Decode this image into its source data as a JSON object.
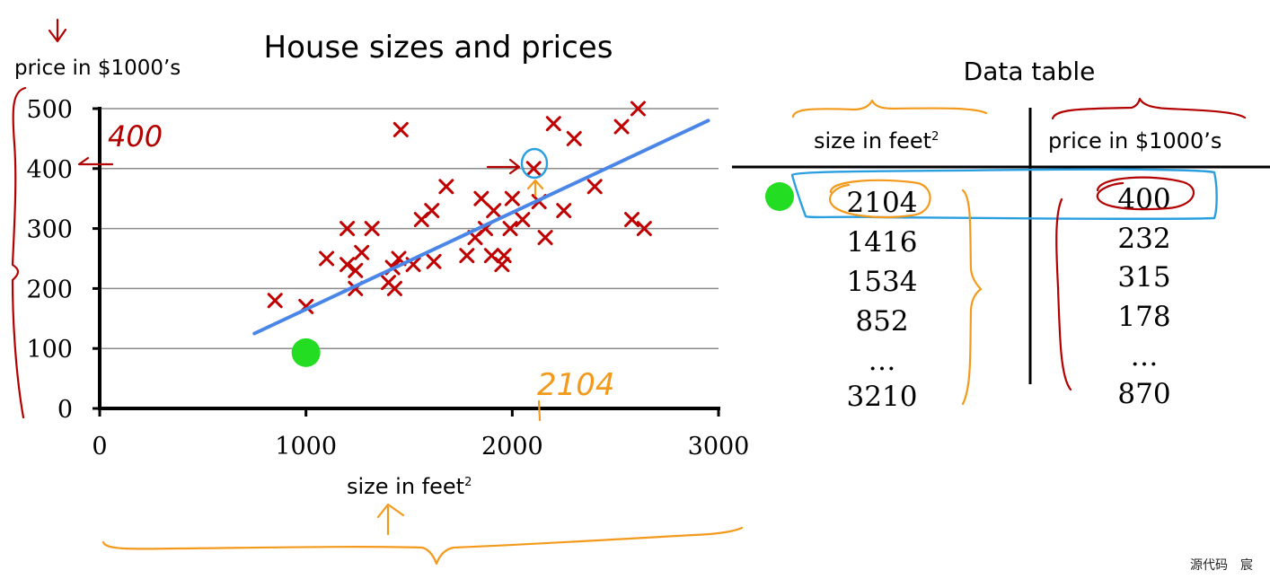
{
  "chart_data": {
    "type": "scatter",
    "title": "House sizes and prices",
    "ylabel": "price in $1000’s",
    "xlabel": "size in feet",
    "xlabel_superscript": "2",
    "xlim": [
      0,
      3000
    ],
    "ylim": [
      0,
      500
    ],
    "x_ticks": [
      0,
      1000,
      2000,
      3000
    ],
    "y_ticks": [
      0,
      100,
      200,
      300,
      400,
      500
    ],
    "grid": true,
    "marker": "x",
    "marker_color": "#c00000",
    "points": [
      {
        "x": 850,
        "y": 180
      },
      {
        "x": 1000,
        "y": 170
      },
      {
        "x": 1100,
        "y": 250
      },
      {
        "x": 1200,
        "y": 300
      },
      {
        "x": 1200,
        "y": 240
      },
      {
        "x": 1240,
        "y": 230
      },
      {
        "x": 1240,
        "y": 200
      },
      {
        "x": 1270,
        "y": 260
      },
      {
        "x": 1320,
        "y": 300
      },
      {
        "x": 1400,
        "y": 210
      },
      {
        "x": 1420,
        "y": 235
      },
      {
        "x": 1430,
        "y": 200
      },
      {
        "x": 1450,
        "y": 250
      },
      {
        "x": 1460,
        "y": 465
      },
      {
        "x": 1520,
        "y": 240
      },
      {
        "x": 1560,
        "y": 315
      },
      {
        "x": 1610,
        "y": 330
      },
      {
        "x": 1620,
        "y": 245
      },
      {
        "x": 1680,
        "y": 370
      },
      {
        "x": 1780,
        "y": 255
      },
      {
        "x": 1820,
        "y": 285
      },
      {
        "x": 1850,
        "y": 350
      },
      {
        "x": 1870,
        "y": 300
      },
      {
        "x": 1900,
        "y": 255
      },
      {
        "x": 1910,
        "y": 330
      },
      {
        "x": 1950,
        "y": 240
      },
      {
        "x": 1960,
        "y": 255
      },
      {
        "x": 1990,
        "y": 300
      },
      {
        "x": 2000,
        "y": 350
      },
      {
        "x": 2050,
        "y": 315
      },
      {
        "x": 2104,
        "y": 400
      },
      {
        "x": 2130,
        "y": 345
      },
      {
        "x": 2160,
        "y": 285
      },
      {
        "x": 2200,
        "y": 475
      },
      {
        "x": 2250,
        "y": 330
      },
      {
        "x": 2300,
        "y": 450
      },
      {
        "x": 2400,
        "y": 370
      },
      {
        "x": 2530,
        "y": 470
      },
      {
        "x": 2580,
        "y": 315
      },
      {
        "x": 2610,
        "y": 500
      },
      {
        "x": 2640,
        "y": 300
      }
    ],
    "fit_line": {
      "color": "#4a86e8",
      "x": [
        750,
        2950
      ],
      "y": [
        125,
        480
      ]
    },
    "highlight_point": {
      "x": 2104,
      "y": 400
    },
    "new_point": {
      "x": 1000,
      "y": 93,
      "color": "#22dd22"
    }
  },
  "table": {
    "title": "Data table",
    "col1_header": "size in feet",
    "col1_superscript": "2",
    "col2_header": "price in $1000’s",
    "col1_values": [
      "2104",
      "1416",
      "1534",
      "852",
      "…",
      "3210"
    ],
    "col2_values": [
      "400",
      "232",
      "315",
      "178",
      "…",
      "870"
    ]
  },
  "annotations": {
    "handwritten_400": "400",
    "handwritten_2104": "2104"
  },
  "watermark": "源代码　宸",
  "colors": {
    "ink_red": "#b30000",
    "ink_orange": "#f39a1c",
    "ink_blue": "#2a9fe0",
    "fit_line": "#4a86e8",
    "green_dot": "#22dd22"
  }
}
